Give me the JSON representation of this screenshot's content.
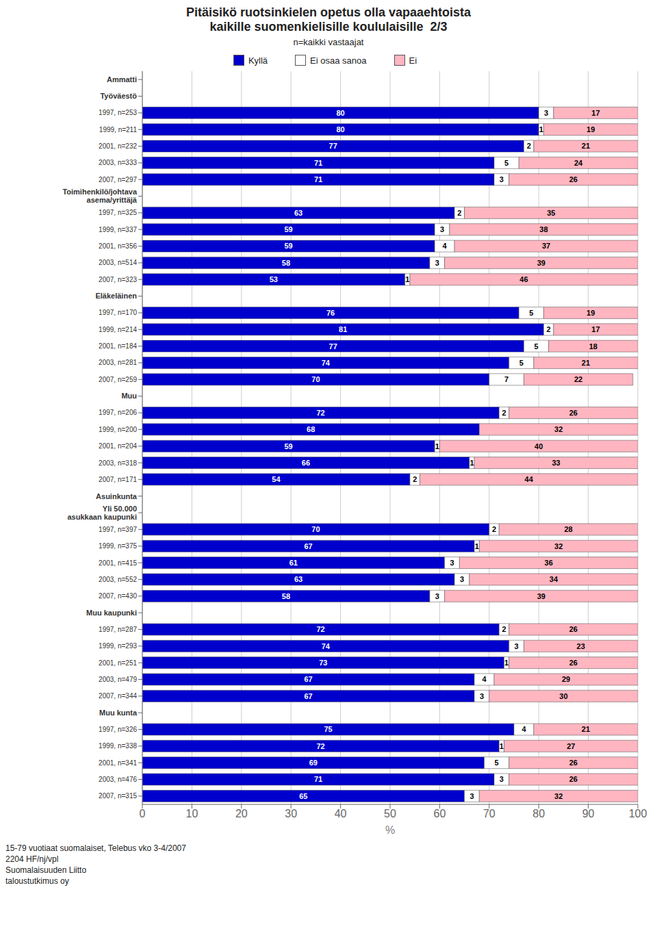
{
  "chart_data": {
    "type": "bar",
    "orientation": "horizontal",
    "stacked": true,
    "data_labels": true,
    "grid": true,
    "legend": "top",
    "title": "Pitäisikö ruotsinkielen opetus olla vapaaehtoista\nkaikille suomenkielisille koululaisille  2/3",
    "subtitle": "n=kaikki vastaajat",
    "xlabel": "%",
    "xlim": [
      0,
      100
    ],
    "xticks": [
      0,
      10,
      20,
      30,
      40,
      50,
      60,
      70,
      80,
      90,
      100
    ],
    "annotations": [
      "15-79 vuotiaat suomalaiset, Telebus vko 3-4/2007",
      "2204 HF/nj/vpl",
      "Suomalaisuuden Liitto",
      "taloustutkimus oy"
    ],
    "categories": [
      "Ammatti",
      "Työväestö",
      "1997, n=253",
      "1999, n=211",
      "2001, n=232",
      "2003, n=333",
      "2007, n=297",
      "Toimihenkilö/johtava\nasema/yrittäjä",
      "1997, n=325",
      "1999, n=337",
      "2001, n=356",
      "2003, n=514",
      "2007, n=323",
      "Eläkeläinen",
      "1997, n=170",
      "1999, n=214",
      "2001, n=184",
      "2003, n=281",
      "2007, n=259",
      "Muu",
      "1997, n=206",
      "1999, n=200",
      "2001, n=204",
      "2003, n=318",
      "2007, n=171",
      "Asuinkunta",
      "Yli 50.000\nasukkaan kaupunki",
      "1997, n=397",
      "1999, n=375",
      "2001, n=415",
      "2003, n=552",
      "2007, n=430",
      "Muu kaupunki",
      "1997, n=287",
      "1999, n=293",
      "2001, n=251",
      "2003, n=479",
      "2007, n=344",
      "Muu kunta",
      "1997, n=326",
      "1999, n=338",
      "2001, n=341",
      "2003, n=476",
      "2007, n=315"
    ],
    "series": [
      {
        "name": "Kyllä",
        "color": "#0000CD",
        "values": [
          null,
          null,
          80,
          80,
          77,
          71,
          71,
          null,
          63,
          59,
          59,
          58,
          53,
          null,
          76,
          81,
          77,
          74,
          70,
          null,
          72,
          68,
          59,
          66,
          54,
          null,
          null,
          70,
          67,
          61,
          63,
          58,
          null,
          72,
          74,
          73,
          67,
          67,
          null,
          75,
          72,
          69,
          71,
          65
        ]
      },
      {
        "name": "Ei osaa sanoa",
        "color": "#FFFFFF",
        "values": [
          null,
          null,
          3,
          1,
          2,
          5,
          3,
          null,
          2,
          3,
          4,
          3,
          1,
          null,
          5,
          2,
          5,
          5,
          7,
          null,
          2,
          0,
          1,
          1,
          2,
          null,
          null,
          2,
          1,
          3,
          3,
          3,
          null,
          2,
          3,
          1,
          4,
          3,
          null,
          4,
          1,
          5,
          3,
          3
        ]
      },
      {
        "name": "Ei",
        "color": "#FFB6C1",
        "values": [
          null,
          null,
          17,
          19,
          21,
          24,
          26,
          null,
          35,
          38,
          37,
          39,
          46,
          null,
          19,
          17,
          18,
          21,
          22,
          null,
          26,
          32,
          40,
          33,
          44,
          null,
          null,
          28,
          32,
          36,
          34,
          39,
          null,
          26,
          23,
          26,
          29,
          30,
          null,
          21,
          27,
          26,
          26,
          32
        ]
      }
    ]
  }
}
